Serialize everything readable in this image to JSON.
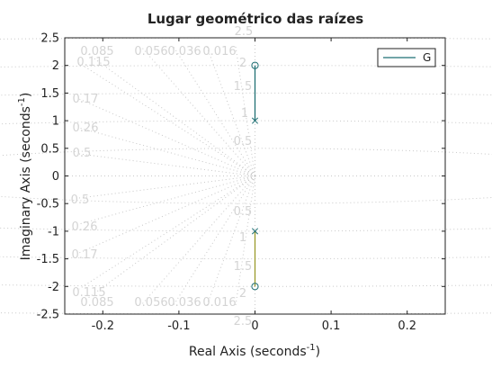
{
  "chart_data": {
    "type": "line",
    "title": "Lugar geométrico das raízes",
    "xlabel": "Real Axis (seconds",
    "xlabel_sup": "-1",
    "xlabel_close": ")",
    "ylabel": "Imaginary Axis (seconds",
    "ylabel_sup": "-1",
    "ylabel_close": ")",
    "xlim": [
      -0.25,
      0.25
    ],
    "ylim": [
      -2.5,
      2.5
    ],
    "x_ticks": [
      -0.2,
      -0.1,
      0,
      0.1,
      0.2
    ],
    "x_tick_labels": [
      "-0.2",
      "-0.1",
      "0",
      "0.1",
      "0.2"
    ],
    "y_ticks": [
      -2.5,
      -2,
      -1.5,
      -1,
      -0.5,
      0,
      0.5,
      1,
      1.5,
      2,
      2.5
    ],
    "y_tick_labels": [
      "-2.5",
      "-2",
      "-1.5",
      "-1",
      "-0.5",
      "0",
      "0.5",
      "1",
      "1.5",
      "2",
      "2.5"
    ],
    "legend": {
      "entries": [
        "G"
      ],
      "placement": "top-right"
    },
    "series": [
      {
        "name": "G",
        "color": "#1f6f73",
        "x": [
          0,
          0
        ],
        "y": [
          1,
          2
        ]
      },
      {
        "color": "#9a9a2a",
        "x": [
          0,
          0
        ],
        "y": [
          -1,
          -2
        ]
      }
    ],
    "poles": [
      {
        "x": 0,
        "y": 1
      },
      {
        "x": 0,
        "y": -1
      }
    ],
    "zeros": [
      {
        "x": 0,
        "y": 2
      },
      {
        "x": 0,
        "y": -2
      }
    ],
    "damping_labels_top": [
      "0.085",
      "0.115",
      "0.17",
      "0.26",
      "0.5",
      "0.056",
      "0.036",
      "0.016"
    ],
    "damping_labels_bottom": [
      "0.5",
      "0.26",
      "0.17",
      "0.115",
      "0.085",
      "0.056",
      "0.036",
      "0.016"
    ],
    "frequency_labels_top": [
      "2.5",
      "2",
      "1.5",
      "1",
      "0.5"
    ],
    "frequency_labels_bottom": [
      "0.5",
      "1",
      "1.5",
      "2",
      "2.5"
    ],
    "grid": true,
    "colors": {
      "axes": "#222222",
      "grid": "#c8c8c8",
      "grid_label": "#d4d4d4",
      "locus": "#1f6f73",
      "locus_lower": "#9a9a2a"
    }
  }
}
